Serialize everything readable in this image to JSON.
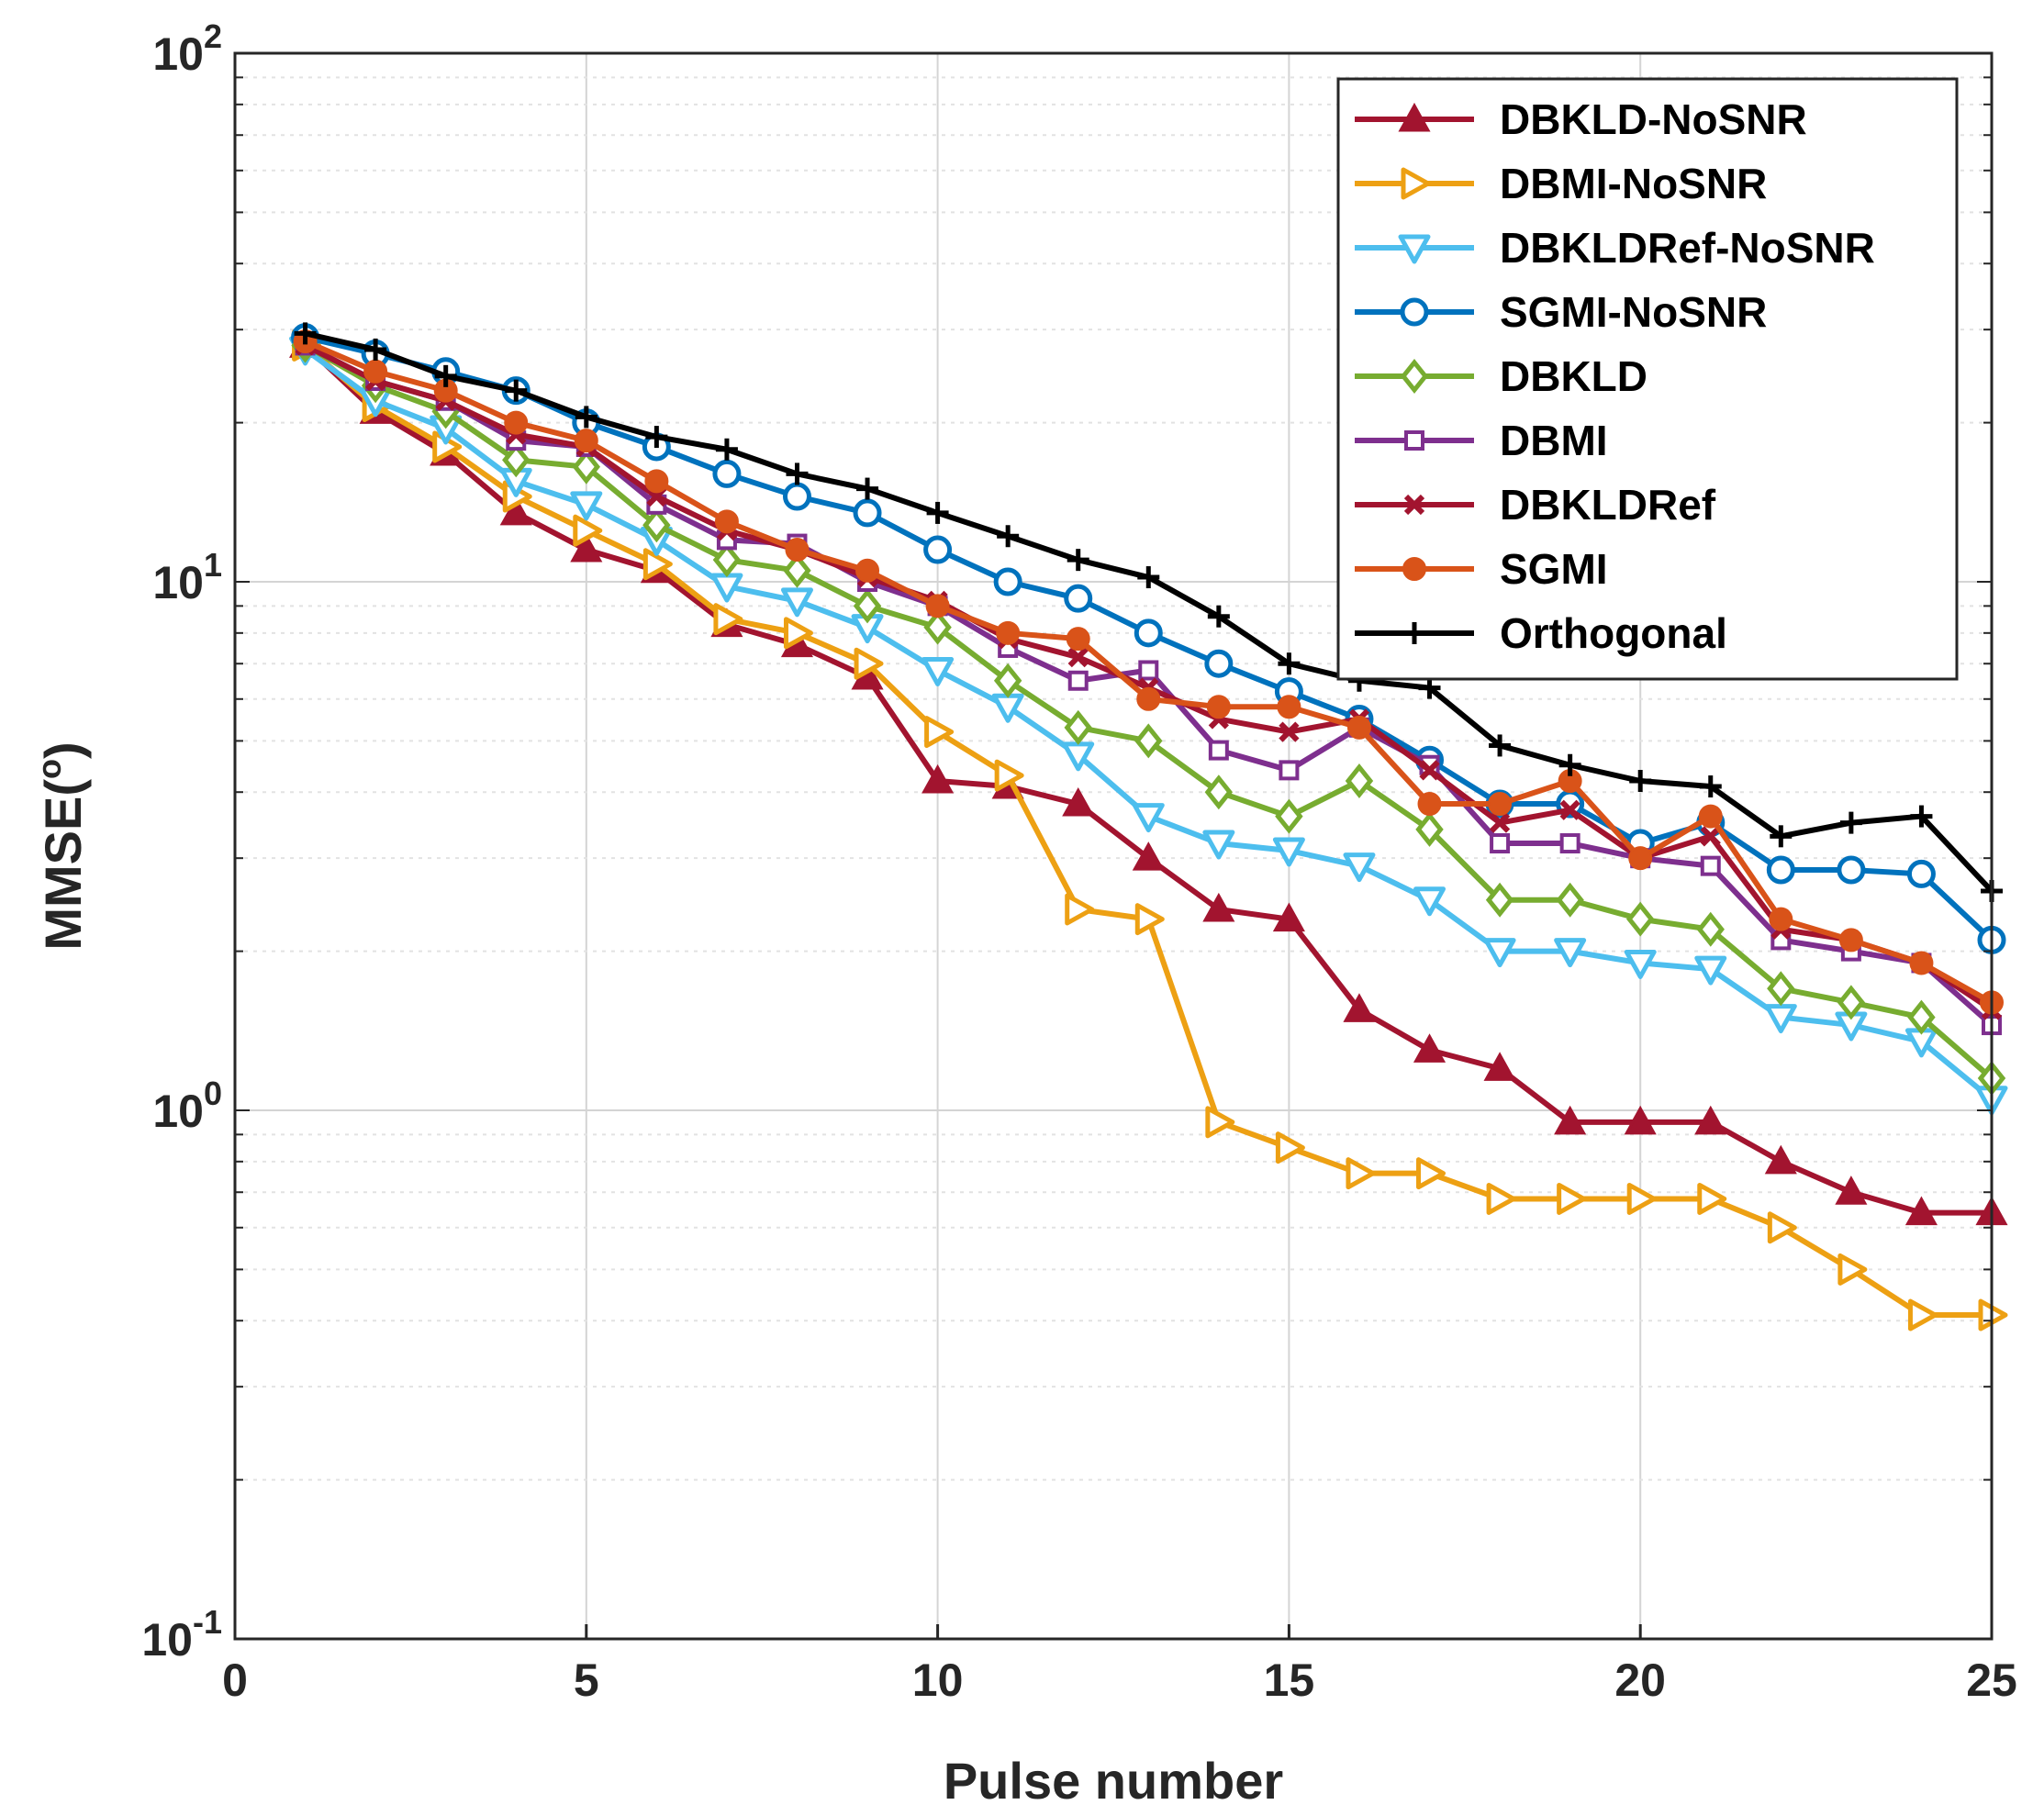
{
  "chart_data": {
    "type": "line",
    "xlabel": "Pulse number",
    "ylabel": "MMSE(°)",
    "ylabel_base": "MMSE(",
    "ylabel_sup": "o",
    "ylabel_close": ")",
    "xscale": "linear",
    "yscale": "log",
    "xlim": [
      0,
      25
    ],
    "ylim": [
      0.1,
      100
    ],
    "xticks": [
      0,
      5,
      10,
      15,
      20,
      25
    ],
    "xtick_labels": [
      "0",
      "5",
      "10",
      "15",
      "20",
      "25"
    ],
    "yticks": [
      {
        "value": 0.1,
        "base": "10",
        "exp": "-1"
      },
      {
        "value": 1,
        "base": "10",
        "exp": "0"
      },
      {
        "value": 10,
        "base": "10",
        "exp": "1"
      },
      {
        "value": 100,
        "base": "10",
        "exp": "2"
      }
    ],
    "grid": true,
    "legend_position": "top-right",
    "x": [
      1,
      2,
      3,
      4,
      5,
      6,
      7,
      8,
      9,
      10,
      11,
      12,
      13,
      14,
      15,
      16,
      17,
      18,
      19,
      20,
      21,
      22,
      23,
      24,
      25
    ],
    "series": [
      {
        "name": "DBKLD-NoSNR",
        "color": "#A2142F",
        "marker": "triangle-up",
        "values": [
          28,
          21,
          17.5,
          13.5,
          11.5,
          10.5,
          8.3,
          7.6,
          6.6,
          4.2,
          4.1,
          3.8,
          3.0,
          2.4,
          2.3,
          1.55,
          1.3,
          1.2,
          0.95,
          0.95,
          0.95,
          0.8,
          0.7,
          0.64,
          0.64
        ]
      },
      {
        "name": "DBMI-NoSNR",
        "color": "#EDA013",
        "marker": "triangle-right",
        "values": [
          28,
          21.5,
          18,
          14.5,
          12.5,
          10.8,
          8.5,
          8.0,
          7.0,
          5.2,
          4.3,
          2.4,
          2.3,
          0.95,
          0.85,
          0.76,
          0.76,
          0.68,
          0.68,
          0.68,
          0.68,
          0.6,
          0.5,
          0.41,
          0.41
        ]
      },
      {
        "name": "DBKLDRef-NoSNR",
        "color": "#4DBEEE",
        "marker": "triangle-down",
        "values": [
          27.5,
          22,
          19.5,
          15.5,
          14,
          12,
          9.8,
          9.2,
          8.2,
          6.8,
          5.8,
          4.7,
          3.6,
          3.2,
          3.1,
          2.9,
          2.5,
          2.0,
          2.0,
          1.9,
          1.85,
          1.5,
          1.45,
          1.35,
          1.05
        ]
      },
      {
        "name": "SGMI-NoSNR",
        "color": "#0072BD",
        "marker": "circle",
        "values": [
          29,
          27,
          25,
          23,
          20,
          18,
          16,
          14.5,
          13.5,
          11.5,
          10,
          9.3,
          8,
          7,
          6.2,
          5.5,
          4.6,
          3.8,
          3.8,
          3.2,
          3.5,
          2.85,
          2.85,
          2.8,
          2.1
        ]
      },
      {
        "name": "DBKLD",
        "color": "#77AC30",
        "marker": "diamond",
        "values": [
          28,
          23.5,
          21,
          17,
          16.5,
          12.8,
          11,
          10.5,
          9,
          8.2,
          6.5,
          5.3,
          5,
          4,
          3.6,
          4.2,
          3.4,
          2.5,
          2.5,
          2.3,
          2.2,
          1.7,
          1.6,
          1.5,
          1.15
        ]
      },
      {
        "name": "DBMI",
        "color": "#7E2F8E",
        "marker": "square",
        "values": [
          28,
          24,
          22,
          18.5,
          18,
          14,
          12,
          11.8,
          10,
          9,
          7.5,
          6.5,
          6.8,
          4.8,
          4.4,
          5.3,
          4.5,
          3.2,
          3.2,
          3.0,
          2.9,
          2.1,
          2.0,
          1.9,
          1.45
        ]
      },
      {
        "name": "DBKLDRef",
        "color": "#A2142F",
        "marker": "x",
        "values": [
          28,
          24,
          22,
          19,
          18,
          14.5,
          12.5,
          11.5,
          10.2,
          9.2,
          7.8,
          7.2,
          6.3,
          5.5,
          5.2,
          5.5,
          4.4,
          3.5,
          3.7,
          3.0,
          3.3,
          2.2,
          2.1,
          1.9,
          1.55
        ]
      },
      {
        "name": "SGMI",
        "color": "#D95319",
        "marker": "filled-circle",
        "values": [
          28.5,
          25,
          23,
          20,
          18.5,
          15.5,
          13,
          11.5,
          10.5,
          9.0,
          8.0,
          7.8,
          6.0,
          5.8,
          5.8,
          5.3,
          3.8,
          3.8,
          4.2,
          3.0,
          3.6,
          2.3,
          2.1,
          1.9,
          1.6
        ]
      },
      {
        "name": "Orthogonal",
        "color": "#000000",
        "marker": "plus",
        "values": [
          29.5,
          27.5,
          24.5,
          23,
          20.5,
          18.8,
          17.8,
          16,
          15,
          13.5,
          12.2,
          11,
          10.2,
          8.6,
          7,
          6.5,
          6.3,
          4.9,
          4.5,
          4.2,
          4.1,
          3.3,
          3.5,
          3.6,
          2.6
        ]
      }
    ]
  }
}
